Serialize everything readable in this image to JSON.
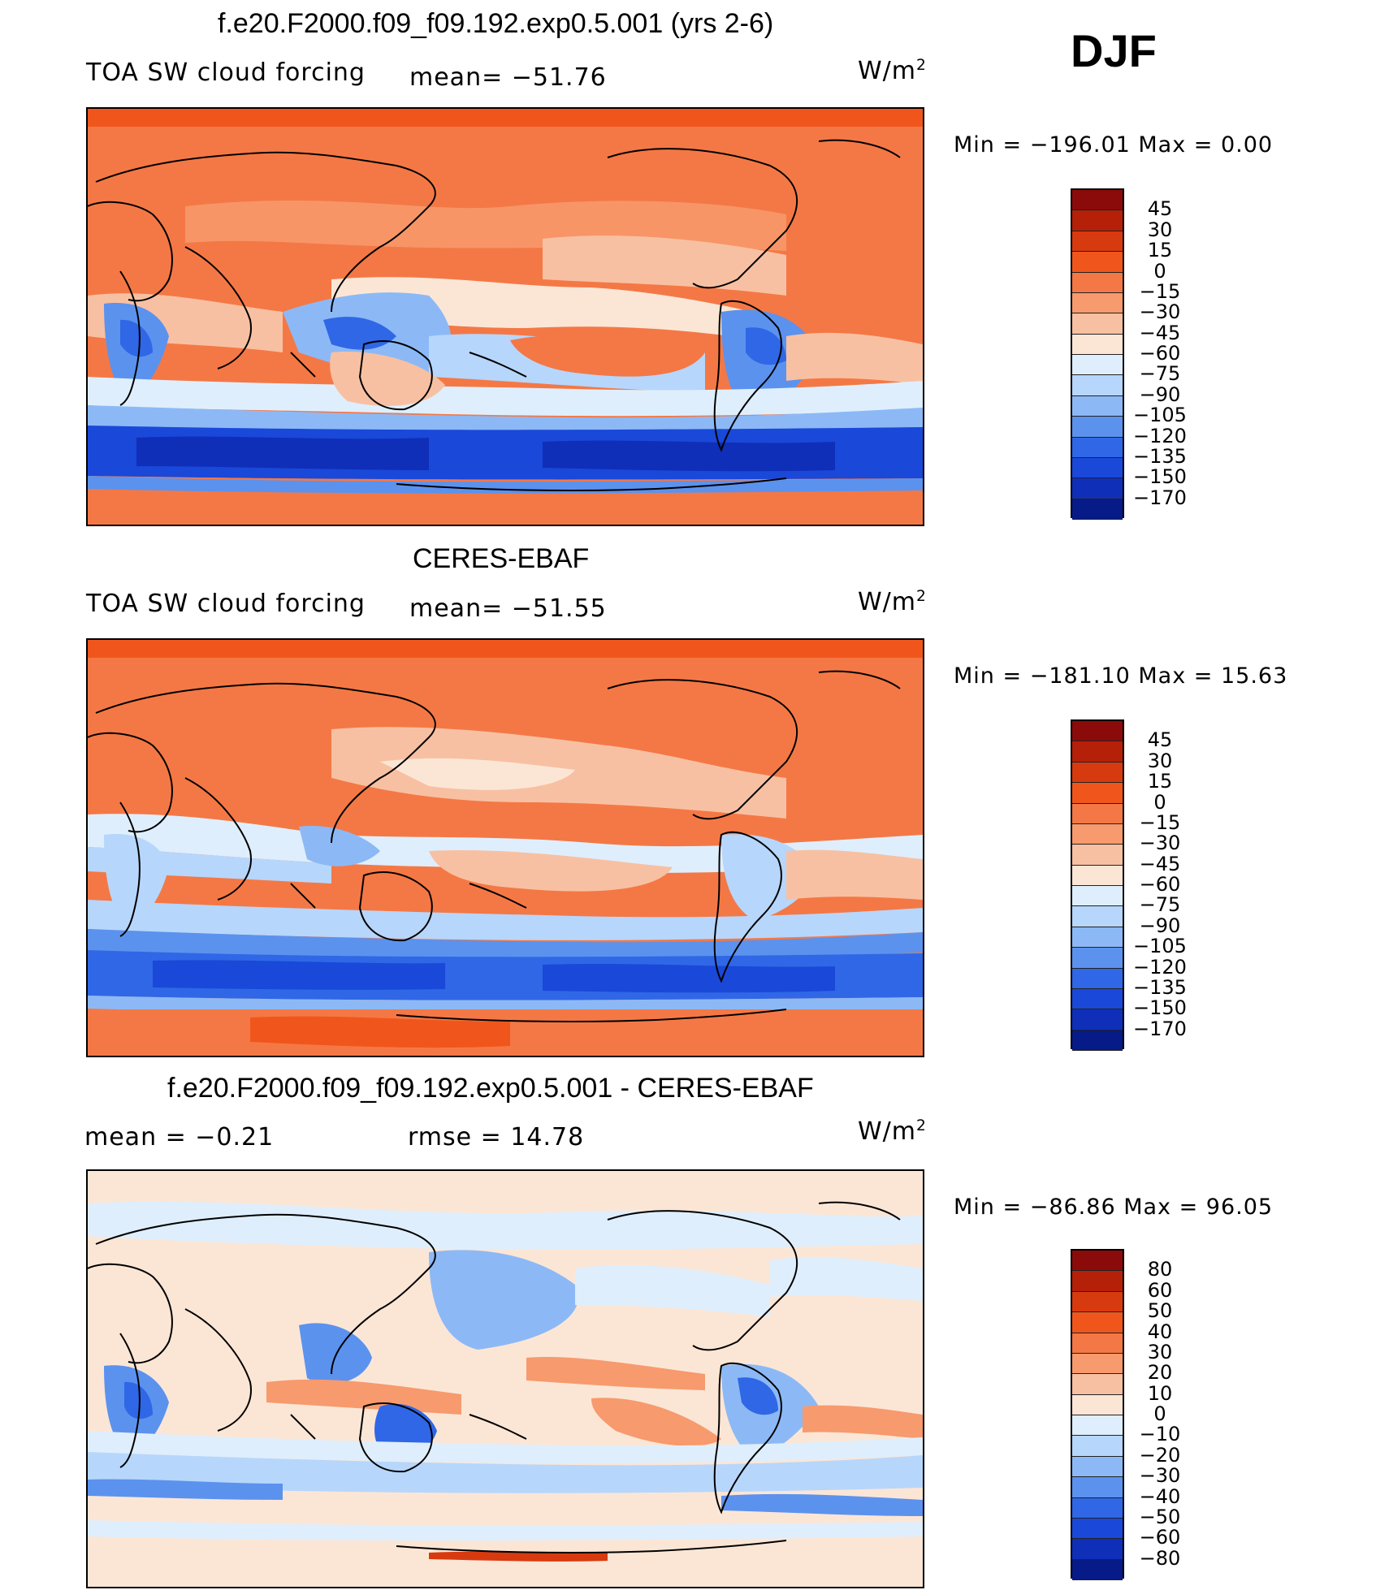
{
  "season": "DJF",
  "colors": {
    "model_levels": [
      "#8b0a0a",
      "#b52008",
      "#d83a0f",
      "#f0561c",
      "#f47845",
      "#f79a6d",
      "#f8c0a2",
      "#fbe6d6",
      "#dfeefc",
      "#b7d6fb",
      "#8cb9f6",
      "#5b92ee",
      "#2f67e6",
      "#1a48d8",
      "#0f2fb8",
      "#061a88"
    ],
    "diff_levels": [
      "#8b0a0a",
      "#b52008",
      "#d83a0f",
      "#f0561c",
      "#f47845",
      "#f79a6d",
      "#f8c0a2",
      "#fbe6d6",
      "#dfeefc",
      "#b7d6fb",
      "#8cb9f6",
      "#5b92ee",
      "#2f67e6",
      "#1a48d8",
      "#0f2fb8",
      "#061a88"
    ],
    "coast": "#000000"
  },
  "panels": [
    {
      "title": "f.e20.F2000.f09_f09.192.exp0.5.001 (yrs 2-6)",
      "left_label": "TOA SW cloud forcing",
      "center_label": "mean= −51.76",
      "units_base": "W/m",
      "units_sup": "2",
      "min_label": "Min  =  −196.01  Max  =     0.00",
      "colorbar_labels": [
        "45",
        "30",
        "15",
        "0",
        "−15",
        "−30",
        "−45",
        "−60",
        "−75",
        "−90",
        "−105",
        "−120",
        "−135",
        "−150",
        "−170"
      ]
    },
    {
      "title": "CERES-EBAF",
      "left_label": "TOA SW cloud forcing",
      "center_label": "mean= −51.55",
      "units_base": "W/m",
      "units_sup": "2",
      "min_label": "Min  =  −181.10  Max  =    15.63",
      "colorbar_labels": [
        "45",
        "30",
        "15",
        "0",
        "−15",
        "−30",
        "−45",
        "−60",
        "−75",
        "−90",
        "−105",
        "−120",
        "−135",
        "−150",
        "−170"
      ]
    },
    {
      "title": "f.e20.F2000.f09_f09.192.exp0.5.001 - CERES-EBAF",
      "left_label": "mean  =    −0.21",
      "center_label": "rmse  =    14.78",
      "units_base": "W/m",
      "units_sup": "2",
      "min_label": "Min  =  −86.86  Max  =    96.05",
      "colorbar_labels": [
        "80",
        "60",
        "50",
        "40",
        "30",
        "20",
        "10",
        "0",
        "−10",
        "−20",
        "−30",
        "−40",
        "−50",
        "−60",
        "−80"
      ]
    }
  ],
  "chart_data": [
    {
      "type": "heatmap",
      "title": "f.e20.F2000.f09_f09.192.exp0.5.001 (yrs 2-6)",
      "variable": "TOA SW cloud forcing",
      "units": "W/m2",
      "mean": -51.76,
      "min": -196.01,
      "max": 0.0,
      "levels": [
        45,
        30,
        15,
        0,
        -15,
        -30,
        -45,
        -60,
        -75,
        -90,
        -105,
        -120,
        -135,
        -150,
        -170
      ]
    },
    {
      "type": "heatmap",
      "title": "CERES-EBAF",
      "variable": "TOA SW cloud forcing",
      "units": "W/m2",
      "mean": -51.55,
      "min": -181.1,
      "max": 15.63,
      "levels": [
        45,
        30,
        15,
        0,
        -15,
        -30,
        -45,
        -60,
        -75,
        -90,
        -105,
        -120,
        -135,
        -150,
        -170
      ]
    },
    {
      "type": "heatmap",
      "title": "f.e20.F2000.f09_f09.192.exp0.5.001 - CERES-EBAF",
      "units": "W/m2",
      "mean": -0.21,
      "rmse": 14.78,
      "min": -86.86,
      "max": 96.05,
      "levels": [
        80,
        60,
        50,
        40,
        30,
        20,
        10,
        0,
        -10,
        -20,
        -30,
        -40,
        -50,
        -60,
        -80
      ]
    }
  ]
}
